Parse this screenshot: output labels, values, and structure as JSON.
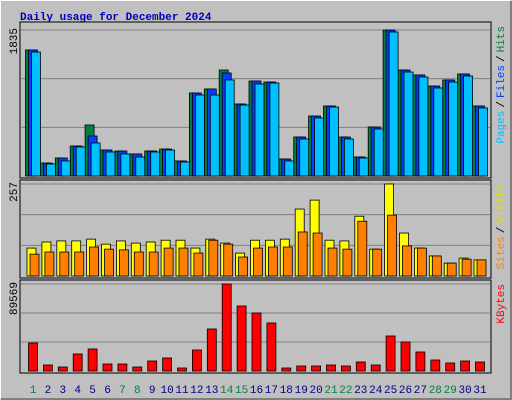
{
  "chart_data": [
    {
      "type": "bar",
      "title": "Daily usage for December 2024",
      "ylim": [
        0,
        1835
      ],
      "yticks": [
        1835
      ],
      "legend_separator": "/",
      "series": [
        {
          "name": "Hits",
          "color": "#008040",
          "label_color": "#008040",
          "values": [
            1584,
            163,
            226,
            377,
            641,
            327,
            314,
            277,
            314,
            339,
            189,
            1043,
            1094,
            1332,
            905,
            1194,
            1181,
            214,
            490,
            754,
            880,
            490,
            239,
            616,
            1835,
            1332,
            1270,
            1131,
            1207,
            1282,
            880
          ]
        },
        {
          "name": "Files",
          "color": "#0040ff",
          "label_color": "#0040ff",
          "values": [
            1584,
            163,
            226,
            377,
            503,
            327,
            314,
            277,
            314,
            339,
            189,
            1043,
            1094,
            1295,
            905,
            1194,
            1181,
            214,
            490,
            754,
            880,
            490,
            239,
            616,
            1835,
            1332,
            1270,
            1131,
            1207,
            1282,
            880
          ]
        },
        {
          "name": "Pages",
          "color": "#00c0ff",
          "label_color": "#00c0ff",
          "values": [
            1558,
            151,
            189,
            365,
            415,
            302,
            277,
            239,
            302,
            327,
            176,
            1018,
            1018,
            1207,
            892,
            1156,
            1169,
            189,
            465,
            729,
            867,
            465,
            226,
            591,
            1810,
            1307,
            1244,
            1106,
            1181,
            1257,
            855
          ]
        }
      ]
    },
    {
      "type": "bar",
      "ylim": [
        0,
        257
      ],
      "yticks": [
        257
      ],
      "legend_separator": "/",
      "series": [
        {
          "name": "Visits",
          "color": "#ffff00",
          "label_color": "#e0e000",
          "values": [
            78,
            95,
            98,
            98,
            103,
            89,
            98,
            92,
            95,
            100,
            100,
            78,
            103,
            92,
            64,
            100,
            100,
            103,
            187,
            212,
            100,
            98,
            167,
            75,
            257,
            120,
            78,
            56,
            36,
            50,
            45
          ]
        },
        {
          "name": "Sites",
          "color": "#ff8000",
          "label_color": "#ff8000",
          "values": [
            61,
            67,
            67,
            67,
            81,
            75,
            73,
            67,
            67,
            78,
            78,
            64,
            100,
            89,
            53,
            78,
            81,
            81,
            123,
            120,
            78,
            75,
            153,
            75,
            170,
            84,
            78,
            56,
            36,
            47,
            45
          ]
        }
      ]
    },
    {
      "type": "bar",
      "ylim": [
        0,
        89569
      ],
      "yticks": [
        89569
      ],
      "series": [
        {
          "name": "KBytes",
          "color": "#ff0000",
          "label_color": "#ff0000",
          "values": [
            28840,
            6180,
            4120,
            17510,
            22660,
            7210,
            7210,
            4120,
            10300,
            13390,
            3090,
            21630,
            43260,
            89569,
            66950,
            59740,
            49440,
            3090,
            5150,
            5150,
            6180,
            5150,
            9270,
            6180,
            36050,
            29870,
            19570,
            11330,
            8240,
            10300,
            9270
          ]
        }
      ],
      "categories": [
        "1",
        "2",
        "3",
        "4",
        "5",
        "6",
        "7",
        "8",
        "9",
        "10",
        "11",
        "12",
        "13",
        "14",
        "15",
        "16",
        "17",
        "18",
        "19",
        "20",
        "21",
        "22",
        "23",
        "24",
        "25",
        "26",
        "27",
        "28",
        "29",
        "30",
        "31"
      ],
      "category_colors": [
        "#008040",
        "#000080",
        "#000080",
        "#000080",
        "#000080",
        "#000080",
        "#008040",
        "#008040",
        "#000080",
        "#000080",
        "#000080",
        "#000080",
        "#000080",
        "#008040",
        "#008040",
        "#000080",
        "#000080",
        "#000080",
        "#000080",
        "#000080",
        "#008040",
        "#008040",
        "#000080",
        "#000080",
        "#000080",
        "#000080",
        "#000080",
        "#008040",
        "#008040",
        "#000080",
        "#000080"
      ]
    }
  ]
}
